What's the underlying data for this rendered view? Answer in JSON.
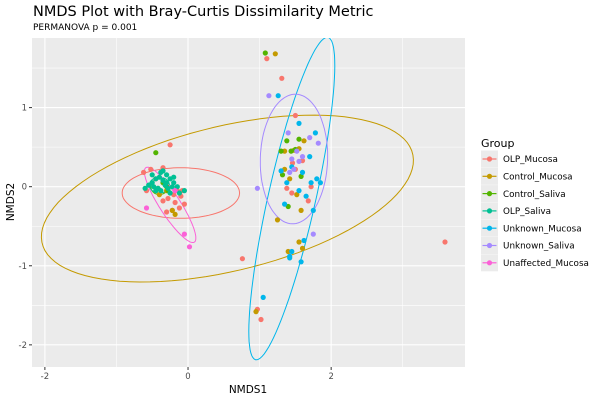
{
  "chart_data": {
    "type": "scatter",
    "title": "NMDS Plot with Bray-Curtis Dissimilarity Metric",
    "subtitle": "PERMANOVA p = 0.001",
    "xlabel": "NMDS1",
    "ylabel": "NMDS2",
    "xlim": [
      -2.18,
      3.87
    ],
    "ylim": [
      -2.28,
      1.88
    ],
    "x_ticks": [
      -2,
      0,
      2
    ],
    "x_tick_labels": [
      "-2",
      "0",
      "2"
    ],
    "y_ticks": [
      -2,
      -1,
      0,
      1
    ],
    "y_tick_labels": [
      "-2",
      "-1",
      "0",
      "1"
    ],
    "grid": true,
    "legend": {
      "title": "Group",
      "placement": "right",
      "entries": [
        "OLP_Mucosa",
        "Control_Mucosa",
        "Control_Saliva",
        "OLP_Saliva",
        "Unknown_Mucosa",
        "Unknown_Saliva",
        "Unaffected_Mucosa"
      ]
    },
    "colors": {
      "OLP_Mucosa": "#F8766D",
      "Control_Mucosa": "#C49A00",
      "Control_Saliva": "#53B400",
      "OLP_Saliva": "#00C094",
      "Unknown_Mucosa": "#00B6EB",
      "Unknown_Saliva": "#A58AFF",
      "Unaffected_Mucosa": "#FB61D7"
    },
    "ellipses": [
      {
        "group": "OLP_Mucosa",
        "cx": -0.1,
        "cy": -0.08,
        "rx": 0.82,
        "ry": 0.32,
        "angle_deg": 0
      },
      {
        "group": "Control_Mucosa",
        "cx": 0.55,
        "cy": -0.15,
        "rx": 2.65,
        "ry": 0.92,
        "angle_deg": 12
      },
      {
        "group": "Control_Saliva",
        "cx": -0.4,
        "cy": 0.0,
        "rx": 0.12,
        "ry": 0.1,
        "angle_deg": 0
      },
      {
        "group": "OLP_Saliva",
        "cx": -0.4,
        "cy": 0.02,
        "rx": 0.14,
        "ry": 0.1,
        "angle_deg": 0
      },
      {
        "group": "Unknown_Mucosa",
        "cx": 1.45,
        "cy": -0.15,
        "rx": 2.1,
        "ry": 0.33,
        "angle_deg": 76
      },
      {
        "group": "Unknown_Saliva",
        "cx": 1.48,
        "cy": 0.35,
        "rx": 0.82,
        "ry": 0.47,
        "angle_deg": 88
      },
      {
        "group": "Unaffected_Mucosa",
        "cx": -0.25,
        "cy": -0.23,
        "rx": 0.58,
        "ry": 0.14,
        "angle_deg": -54
      }
    ],
    "series": [
      {
        "name": "OLP_Mucosa",
        "points": [
          [
            -0.25,
            0.53
          ],
          [
            -0.52,
            0.22
          ],
          [
            -0.35,
            0.24
          ],
          [
            -0.62,
            0.18
          ],
          [
            -0.15,
            -0.05
          ],
          [
            -0.2,
            -0.1
          ],
          [
            -0.1,
            -0.12
          ],
          [
            -0.28,
            -0.15
          ],
          [
            -0.18,
            -0.2
          ],
          [
            -0.05,
            -0.22
          ],
          [
            -0.35,
            -0.18
          ],
          [
            -0.12,
            -0.27
          ],
          [
            -0.3,
            -0.32
          ],
          [
            -0.45,
            0.1
          ],
          [
            -0.58,
            -0.05
          ],
          [
            -0.08,
            -0.05
          ],
          [
            -0.22,
            -0.3
          ],
          [
            1.1,
            1.62
          ],
          [
            1.31,
            1.37
          ],
          [
            1.5,
            0.9
          ],
          [
            1.46,
            0.3
          ],
          [
            1.5,
            0.22
          ],
          [
            1.38,
            -0.02
          ],
          [
            1.45,
            -0.08
          ],
          [
            1.6,
            0.33
          ],
          [
            1.72,
            0.0
          ],
          [
            1.68,
            -0.18
          ],
          [
            3.59,
            -0.7
          ],
          [
            0.76,
            -0.91
          ],
          [
            0.97,
            -1.55
          ],
          [
            1.02,
            -1.68
          ]
        ]
      },
      {
        "name": "Control_Mucosa",
        "points": [
          [
            -0.22,
            -0.3
          ],
          [
            -0.4,
            -0.1
          ],
          [
            -0.3,
            -0.05
          ],
          [
            -0.18,
            -0.35
          ],
          [
            1.22,
            1.68
          ],
          [
            1.35,
            0.45
          ],
          [
            1.48,
            0.46
          ],
          [
            1.55,
            0.48
          ],
          [
            1.62,
            0.58
          ],
          [
            1.35,
            0.22
          ],
          [
            1.42,
            0.1
          ],
          [
            1.52,
            -0.1
          ],
          [
            1.58,
            -0.3
          ],
          [
            1.25,
            -0.42
          ],
          [
            1.55,
            -0.7
          ],
          [
            1.6,
            -0.78
          ],
          [
            1.4,
            -0.82
          ],
          [
            0.95,
            -1.58
          ]
        ]
      },
      {
        "name": "Control_Saliva",
        "points": [
          [
            -0.45,
            0.43
          ],
          [
            1.08,
            1.69
          ],
          [
            1.38,
            0.58
          ],
          [
            1.55,
            0.6
          ],
          [
            1.3,
            0.45
          ],
          [
            1.44,
            0.45
          ],
          [
            1.5,
            0.47
          ],
          [
            1.32,
            0.15
          ],
          [
            1.58,
            0.13
          ],
          [
            1.4,
            -0.25
          ],
          [
            -0.35,
            0.05
          ],
          [
            -0.3,
            0.0
          ],
          [
            -0.42,
            -0.02
          ],
          [
            -0.28,
            -0.05
          ]
        ]
      },
      {
        "name": "OLP_Saliva",
        "points": [
          [
            -0.5,
            0.05
          ],
          [
            -0.45,
            0.1
          ],
          [
            -0.4,
            0.12
          ],
          [
            -0.35,
            0.08
          ],
          [
            -0.3,
            0.05
          ],
          [
            -0.25,
            0.1
          ],
          [
            -0.2,
            0.05
          ],
          [
            -0.15,
            0.0
          ],
          [
            -0.42,
            -0.02
          ],
          [
            -0.38,
            -0.05
          ],
          [
            -0.32,
            0.02
          ],
          [
            -0.28,
            -0.02
          ],
          [
            -0.22,
            0.0
          ],
          [
            -0.48,
            0.0
          ],
          [
            -0.55,
            0.02
          ],
          [
            -0.6,
            -0.02
          ],
          [
            -0.5,
            0.15
          ],
          [
            -0.38,
            0.18
          ],
          [
            -0.3,
            0.15
          ],
          [
            -0.05,
            -0.05
          ],
          [
            -0.12,
            -0.08
          ],
          [
            -0.35,
            0.2
          ],
          [
            -0.45,
            -0.05
          ],
          [
            -0.25,
            -0.08
          ],
          [
            -0.2,
            0.12
          ]
        ]
      },
      {
        "name": "Unknown_Mucosa",
        "points": [
          [
            1.26,
            1.15
          ],
          [
            1.55,
            0.8
          ],
          [
            1.78,
            0.68
          ],
          [
            1.7,
            0.38
          ],
          [
            1.45,
            0.25
          ],
          [
            1.3,
            0.2
          ],
          [
            1.6,
            0.18
          ],
          [
            1.8,
            0.1
          ],
          [
            1.38,
            0.05
          ],
          [
            1.55,
            -0.05
          ],
          [
            1.72,
            0.05
          ],
          [
            1.85,
            0.05
          ],
          [
            1.65,
            -0.12
          ],
          [
            1.75,
            -0.3
          ],
          [
            1.35,
            -0.22
          ],
          [
            1.62,
            -0.68
          ],
          [
            1.45,
            -0.82
          ],
          [
            1.42,
            -0.9
          ],
          [
            1.58,
            -0.95
          ],
          [
            1.05,
            -1.4
          ],
          [
            1.42,
            -0.88
          ]
        ]
      },
      {
        "name": "Unknown_Saliva",
        "points": [
          [
            1.13,
            1.15
          ],
          [
            1.4,
            0.68
          ],
          [
            1.52,
            0.45
          ],
          [
            1.6,
            0.38
          ],
          [
            1.45,
            0.35
          ],
          [
            1.55,
            0.32
          ],
          [
            1.48,
            0.22
          ],
          [
            1.7,
            0.62
          ],
          [
            1.82,
            0.55
          ],
          [
            1.42,
            0.18
          ],
          [
            0.97,
            -0.02
          ],
          [
            1.75,
            -0.6
          ]
        ]
      },
      {
        "name": "Unaffected_Mucosa",
        "points": [
          [
            -0.58,
            -0.27
          ],
          [
            -0.05,
            -0.6
          ],
          [
            0.02,
            -0.76
          ],
          [
            -0.18,
            -0.05
          ]
        ]
      }
    ]
  }
}
